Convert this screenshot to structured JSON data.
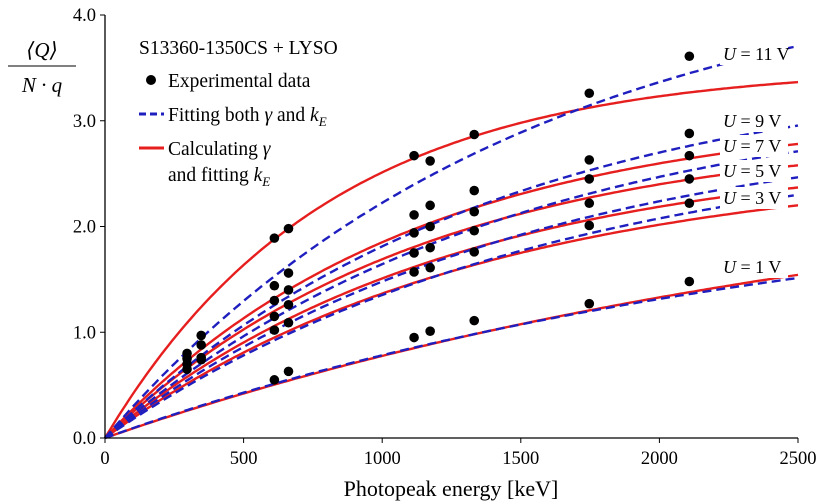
{
  "chart_data": {
    "type": "scatter",
    "title": "S13360-1350CS + LYSO",
    "xlabel": "Photopeak energy [keV]",
    "ylabel_numerator": "⟨Q⟩",
    "ylabel_denominator": "N · q",
    "xlim": [
      0,
      2500
    ],
    "ylim": [
      0,
      4.0
    ],
    "xticks": [
      0,
      500,
      1000,
      1500,
      2000,
      2500
    ],
    "xtick_labels": [
      "0",
      "500",
      "1000",
      "1500",
      "2000",
      "2500"
    ],
    "yticks": [
      0,
      1,
      2,
      3,
      4
    ],
    "ytick_labels": [
      "0.0",
      "1.0",
      "2.0",
      "3.0",
      "4.0"
    ],
    "grid": false,
    "legend": {
      "position": "top-left",
      "entries": [
        {
          "kind": "marker",
          "label": "Experimental data"
        },
        {
          "kind": "dashed",
          "label": "Fitting both",
          "greek": "γ",
          "joiner": "and",
          "var": "k",
          "sub": "E"
        },
        {
          "kind": "solid",
          "label": "Calculating",
          "greek": "γ",
          "line2": "and fitting",
          "var": "k",
          "sub": "E"
        }
      ]
    },
    "x_points": [
      296,
      347,
      611,
      662,
      1115,
      1173,
      1332,
      1747,
      2108
    ],
    "colors": {
      "data": "#000000",
      "fit_both": "#1f1fbf",
      "calc": "#e61e1e",
      "axis": "#000000"
    },
    "series": [
      {
        "name": "U = 11 V",
        "voltage": "11",
        "values": [
          null,
          null,
          1.89,
          1.98,
          2.67,
          2.62,
          2.87,
          3.26,
          3.61
        ],
        "fit_both": {
          "a": 4.57,
          "tau": 1500
        },
        "calc": {
          "a": 3.52,
          "tau": 800
        }
      },
      {
        "name": "U = 9 V",
        "voltage": "9",
        "values": [
          0.8,
          0.97,
          1.44,
          1.56,
          2.11,
          2.2,
          2.34,
          2.63,
          2.88
        ],
        "fit_both": {
          "a": 3.55,
          "tau": 1400
        },
        "calc": {
          "a": 3.1,
          "tau": 1100
        }
      },
      {
        "name": "U = 7 V",
        "voltage": "7",
        "values": [
          0.75,
          0.88,
          1.3,
          1.4,
          1.94,
          2.0,
          2.14,
          2.45,
          2.67
        ],
        "fit_both": {
          "a": 3.3,
          "tau": 1450
        },
        "calc": {
          "a": 2.91,
          "tau": 1150
        }
      },
      {
        "name": "U = 5 V",
        "voltage": "5",
        "values": [
          0.7,
          0.76,
          1.15,
          1.26,
          1.75,
          1.8,
          1.96,
          2.22,
          2.45
        ],
        "fit_both": {
          "a": 3.04,
          "tau": 1500
        },
        "calc": {
          "a": 2.74,
          "tau": 1250
        }
      },
      {
        "name": "U = 3 V",
        "voltage": "3",
        "values": [
          0.65,
          0.74,
          1.02,
          1.09,
          1.57,
          1.61,
          1.76,
          2.01,
          2.22
        ],
        "fit_both": {
          "a": 2.91,
          "tau": 1600
        },
        "calc": {
          "a": 2.61,
          "tau": 1350
        }
      },
      {
        "name": "U = 1 V",
        "voltage": "1",
        "values": [
          null,
          null,
          0.55,
          0.63,
          0.95,
          1.01,
          1.11,
          1.27,
          1.48
        ],
        "fit_both": {
          "a": 2.45,
          "tau": 2600
        },
        "calc": {
          "a": 2.7,
          "tau": 2950
        }
      }
    ]
  }
}
